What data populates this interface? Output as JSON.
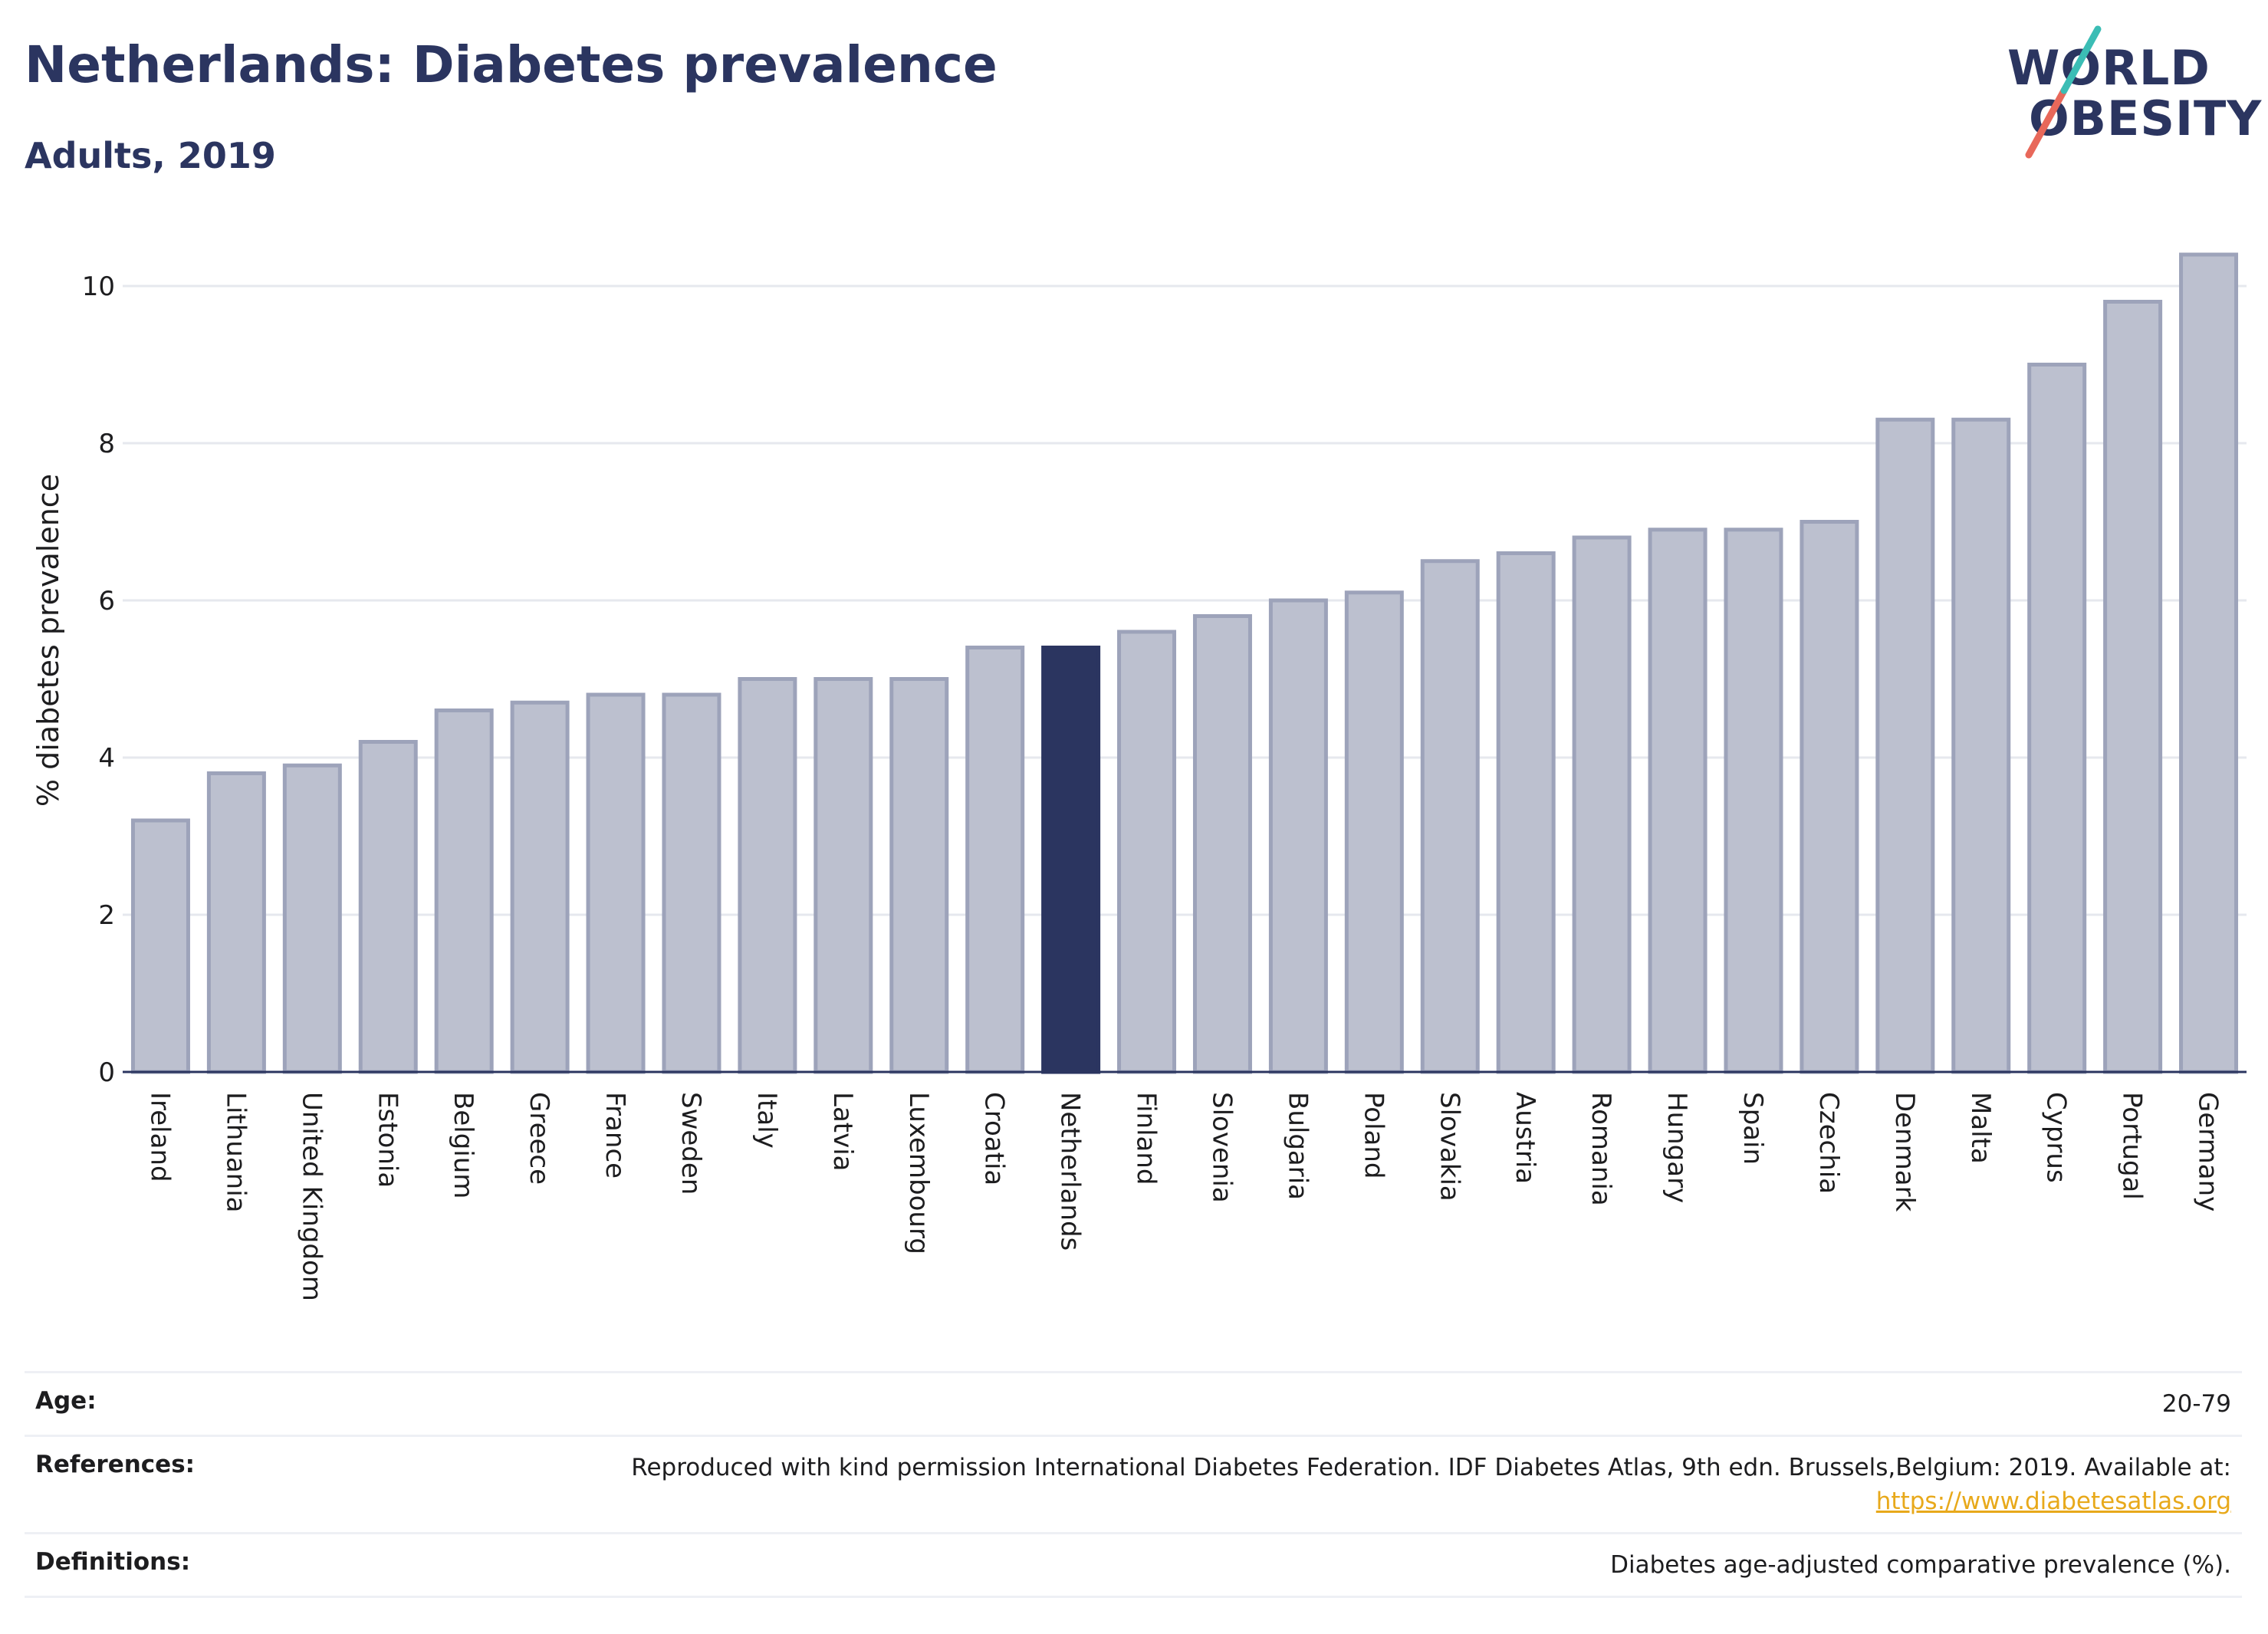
{
  "header": {
    "title": "Netherlands: Diabetes prevalence",
    "subtitle": "Adults, 2019"
  },
  "logo": {
    "line1": "WORLD",
    "line2": "OBESITY",
    "brand_colors": {
      "navy": "#2b3560",
      "teal": "#3bbdb5",
      "coral": "#e8685a"
    }
  },
  "colors": {
    "bar_default": "#bcc0cf",
    "bar_border": "#9da3ba",
    "bar_highlight": "#2b3560",
    "gridline": "#e6e8ee",
    "axis": "#2b3560"
  },
  "chart_data": {
    "type": "bar",
    "title": "Netherlands: Diabetes prevalence",
    "subtitle": "Adults, 2019",
    "xlabel": "",
    "ylabel": "% diabetes prevalence",
    "ylim": [
      0,
      10.5
    ],
    "yticks": [
      0,
      2,
      4,
      6,
      8,
      10
    ],
    "grid": true,
    "highlight": "Netherlands",
    "categories": [
      "Ireland",
      "Lithuania",
      "United Kingdom",
      "Estonia",
      "Belgium",
      "Greece",
      "France",
      "Sweden",
      "Italy",
      "Latvia",
      "Luxembourg",
      "Croatia",
      "Netherlands",
      "Finland",
      "Slovenia",
      "Bulgaria",
      "Poland",
      "Slovakia",
      "Austria",
      "Romania",
      "Hungary",
      "Spain",
      "Czechia",
      "Denmark",
      "Malta",
      "Cyprus",
      "Portugal",
      "Germany"
    ],
    "values": [
      3.2,
      3.8,
      3.9,
      4.2,
      4.6,
      4.7,
      4.8,
      4.8,
      5.0,
      5.0,
      5.0,
      5.4,
      5.4,
      5.6,
      5.8,
      6.0,
      6.1,
      6.5,
      6.6,
      6.8,
      6.9,
      6.9,
      7.0,
      8.3,
      8.3,
      9.0,
      9.8,
      10.4
    ]
  },
  "footer": {
    "age": {
      "label": "Age:",
      "value": "20-79"
    },
    "references": {
      "label": "References:",
      "value": "Reproduced with kind permission International Diabetes Federation. IDF Diabetes Atlas, 9th edn. Brussels,Belgium: 2019. Available at:",
      "link": "https://www.diabetesatlas.org"
    },
    "definitions": {
      "label": "Definitions:",
      "value": "Diabetes age-adjusted comparative prevalence (%)."
    }
  }
}
